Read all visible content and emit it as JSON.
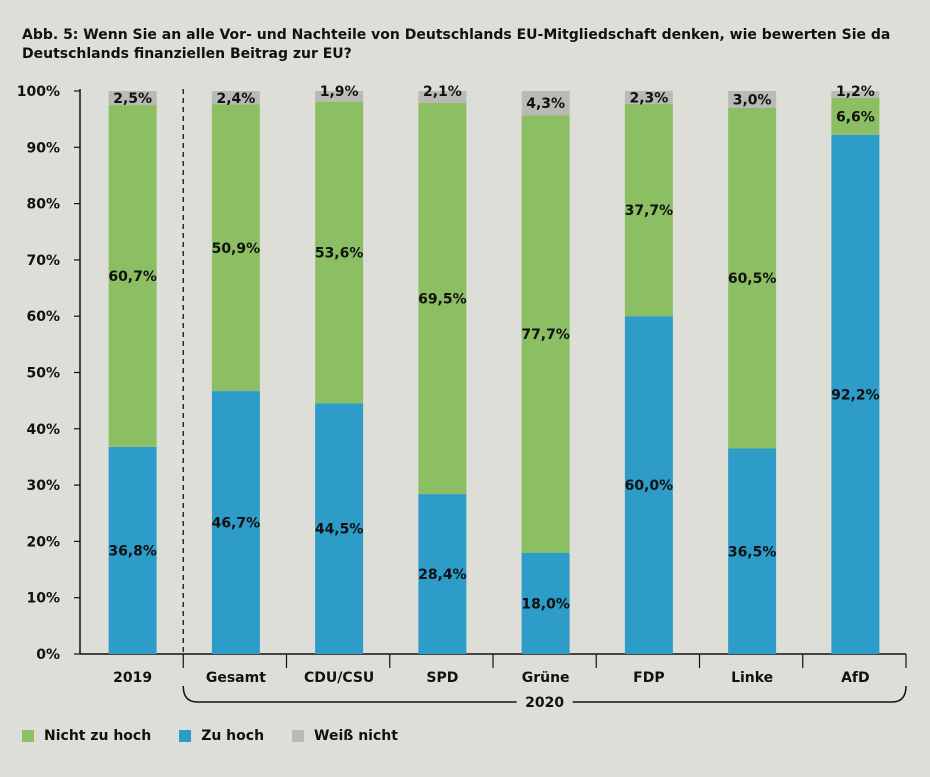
{
  "title": "Abb. 5: Wenn Sie an alle Vor- und Nachteile von Deutschlands EU-Mitgliedschaft denken, wie bewerten Sie da Deutschlands finanziellen Beitrag zur EU?",
  "colors": {
    "zu_hoch": "#2e9cc8",
    "nicht_zu_hoch": "#8cbf63",
    "weiss_nicht": "#b9b9b5",
    "background": "#deded8"
  },
  "chart_data": {
    "type": "bar",
    "stacked": true,
    "title": "Abb. 5: Wenn Sie an alle Vor- und Nachteile von Deutschlands EU-Mitgliedschaft denken, wie bewerten Sie da Deutschlands finanziellen Beitrag zur EU?",
    "categories": [
      "2019",
      "Gesamt",
      "CDU/CSU",
      "SPD",
      "Grüne",
      "FDP",
      "Linke",
      "AfD"
    ],
    "group_label": "2020",
    "series": [
      {
        "name": "Zu hoch",
        "color": "#2e9cc8",
        "values": [
          36.8,
          46.7,
          44.5,
          28.4,
          18.0,
          60.0,
          36.5,
          92.2
        ],
        "labels": [
          "36,8%",
          "46,7%",
          "44,5%",
          "28,4%",
          "18,0%",
          "60,0%",
          "36,5%",
          "92,2%"
        ]
      },
      {
        "name": "Nicht zu hoch",
        "color": "#8cbf63",
        "values": [
          60.7,
          50.9,
          53.6,
          69.5,
          77.7,
          37.7,
          60.5,
          6.6
        ],
        "labels": [
          "60,7%",
          "50,9%",
          "53,6%",
          "69,5%",
          "77,7%",
          "37,7%",
          "60,5%",
          "6,6%"
        ]
      },
      {
        "name": "Weiß nicht",
        "color": "#b9b9b5",
        "values": [
          2.5,
          2.4,
          1.9,
          2.1,
          4.3,
          2.3,
          3.0,
          1.2
        ],
        "labels": [
          "2,5%",
          "2,4%",
          "1,9%",
          "2,1%",
          "4,3%",
          "2,3%",
          "3,0%",
          "1,2%"
        ]
      }
    ],
    "ylim": [
      0,
      100
    ],
    "yticks": [
      "0%",
      "10%",
      "20%",
      "30%",
      "40%",
      "50%",
      "60%",
      "70%",
      "80%",
      "90%",
      "100%"
    ],
    "legend": [
      "Nicht zu hoch",
      "Zu hoch",
      "Weiß nicht"
    ],
    "legend_position": "bottom-left",
    "grid": false
  }
}
